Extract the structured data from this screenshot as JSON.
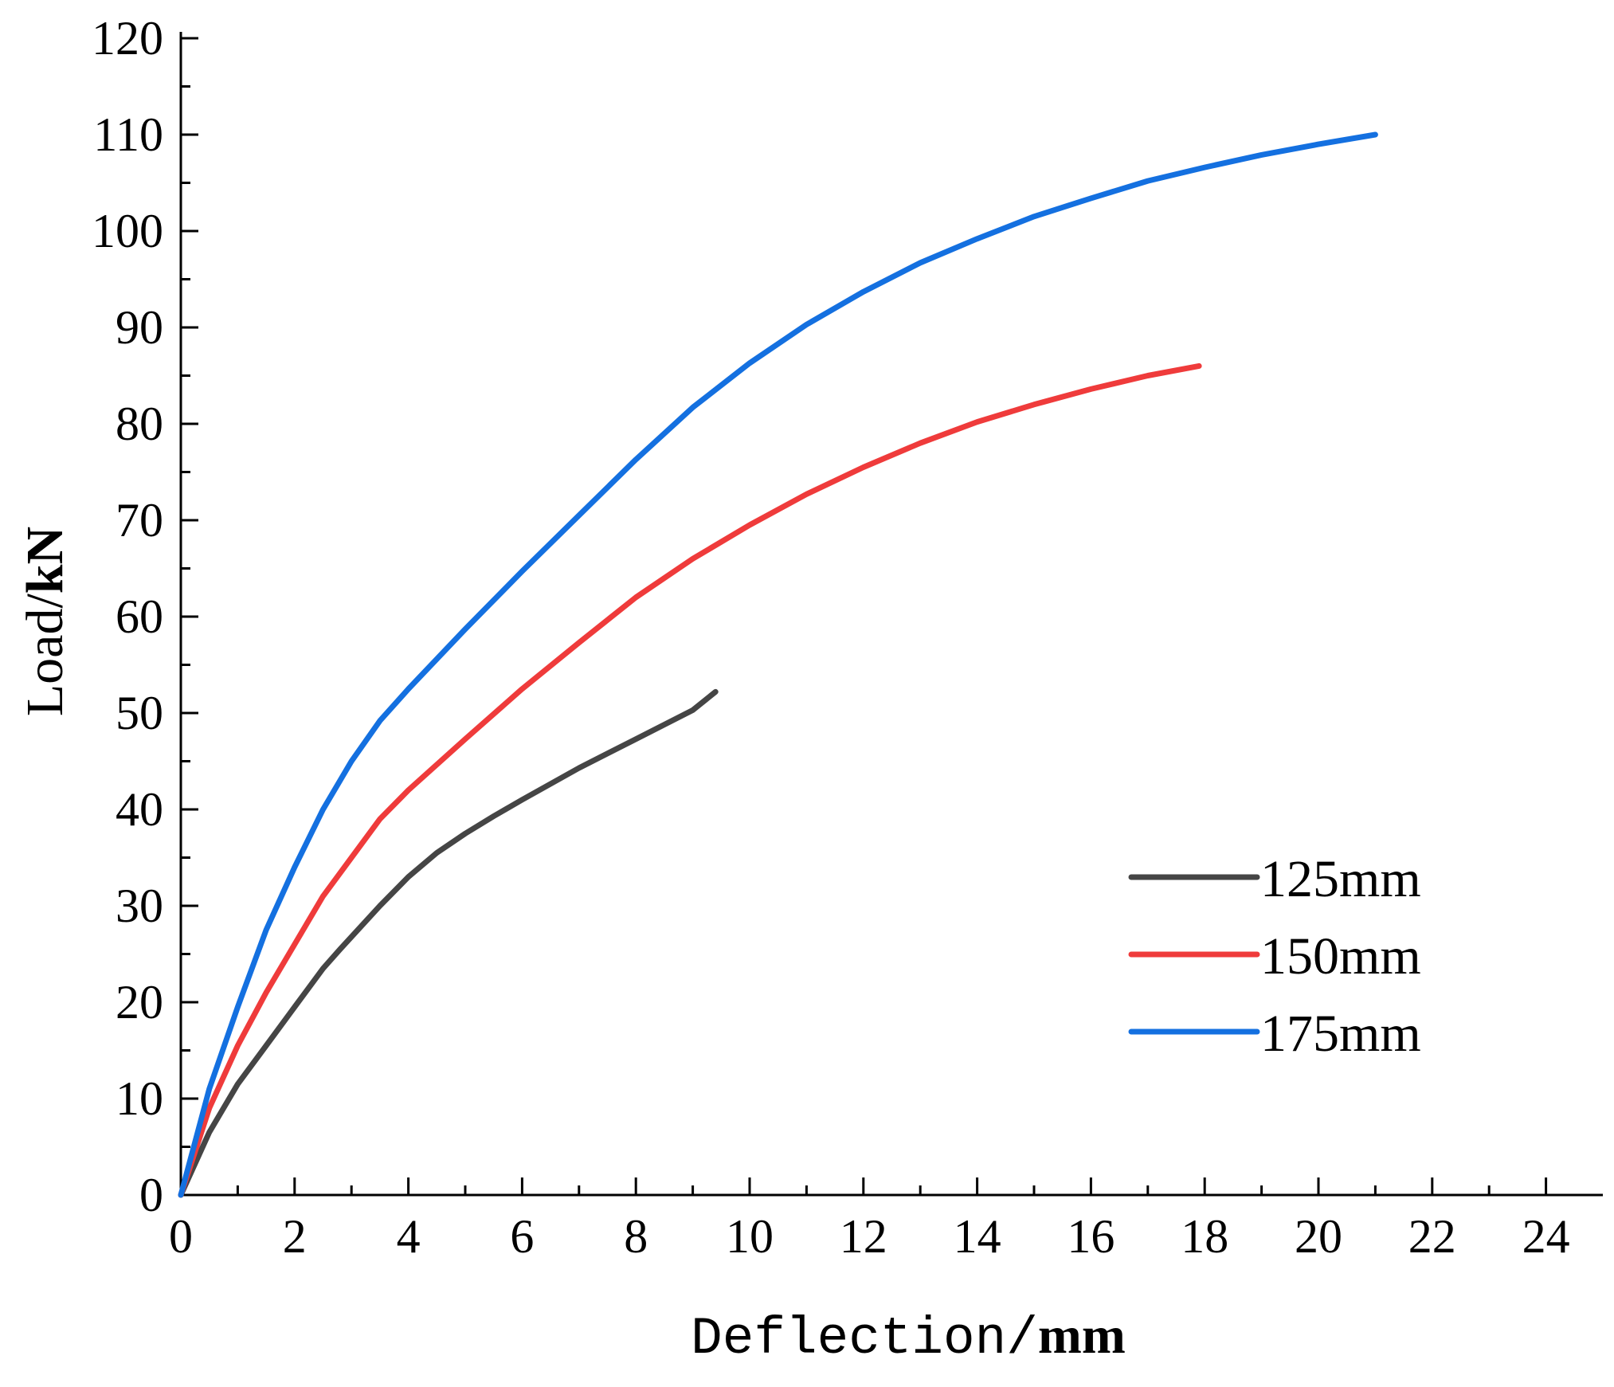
{
  "chart_data": {
    "type": "line",
    "title": "",
    "xlabel": "Deflection/mm",
    "ylabel": "Load/kN",
    "xlabel_parts": {
      "main": "Deflection/",
      "unit": "mm"
    },
    "ylabel_parts": {
      "main": "Load/",
      "unit": "kN"
    },
    "xlim": [
      0,
      25
    ],
    "ylim": [
      0,
      120
    ],
    "xticks": [
      0,
      2,
      4,
      6,
      8,
      10,
      12,
      14,
      16,
      18,
      20,
      22,
      24
    ],
    "yticks": [
      0,
      10,
      20,
      30,
      40,
      50,
      60,
      70,
      80,
      90,
      100,
      110,
      120
    ],
    "grid": false,
    "legend_position": "bottom-right",
    "series": [
      {
        "name": "125mm",
        "color": "#454545",
        "points": [
          [
            0,
            0
          ],
          [
            0.5,
            6.5
          ],
          [
            1.0,
            11.5
          ],
          [
            1.5,
            15.5
          ],
          [
            2.0,
            19.5
          ],
          [
            2.5,
            23.5
          ],
          [
            2.8,
            25.5
          ],
          [
            3.5,
            30
          ],
          [
            4.0,
            33
          ],
          [
            4.5,
            35.5
          ],
          [
            5.0,
            37.5
          ],
          [
            5.5,
            39.3
          ],
          [
            6.0,
            41
          ],
          [
            7.0,
            44.3
          ],
          [
            8.0,
            47.3
          ],
          [
            9.0,
            50.3
          ],
          [
            9.4,
            52.2
          ]
        ]
      },
      {
        "name": "150mm",
        "color": "#ef3b3b",
        "points": [
          [
            0,
            0
          ],
          [
            0.5,
            9
          ],
          [
            1.0,
            15.5
          ],
          [
            1.5,
            21
          ],
          [
            2.0,
            26
          ],
          [
            2.5,
            31
          ],
          [
            3.0,
            35
          ],
          [
            3.5,
            39
          ],
          [
            4.0,
            42
          ],
          [
            5.0,
            47.3
          ],
          [
            6.0,
            52.5
          ],
          [
            7.0,
            57.3
          ],
          [
            8.0,
            62
          ],
          [
            9.0,
            66
          ],
          [
            10.0,
            69.5
          ],
          [
            11.0,
            72.7
          ],
          [
            12.0,
            75.5
          ],
          [
            13.0,
            78
          ],
          [
            14.0,
            80.2
          ],
          [
            15.0,
            82
          ],
          [
            16.0,
            83.6
          ],
          [
            17.0,
            85
          ],
          [
            17.9,
            86
          ]
        ]
      },
      {
        "name": "175mm",
        "color": "#1470e0",
        "points": [
          [
            0,
            0
          ],
          [
            0.5,
            11
          ],
          [
            1.0,
            19.5
          ],
          [
            1.5,
            27.5
          ],
          [
            2.0,
            34
          ],
          [
            2.5,
            40
          ],
          [
            3.0,
            45
          ],
          [
            3.5,
            49.2
          ],
          [
            4.0,
            52.5
          ],
          [
            5.0,
            58.7
          ],
          [
            6.0,
            64.7
          ],
          [
            7.0,
            70.5
          ],
          [
            8.0,
            76.3
          ],
          [
            9.0,
            81.7
          ],
          [
            10.0,
            86.3
          ],
          [
            11.0,
            90.3
          ],
          [
            12.0,
            93.7
          ],
          [
            13.0,
            96.7
          ],
          [
            14.0,
            99.2
          ],
          [
            15.0,
            101.5
          ],
          [
            16.0,
            103.4
          ],
          [
            17.0,
            105.2
          ],
          [
            18.0,
            106.6
          ],
          [
            19.0,
            107.9
          ],
          [
            20.0,
            109
          ],
          [
            21.0,
            110
          ]
        ]
      }
    ]
  }
}
